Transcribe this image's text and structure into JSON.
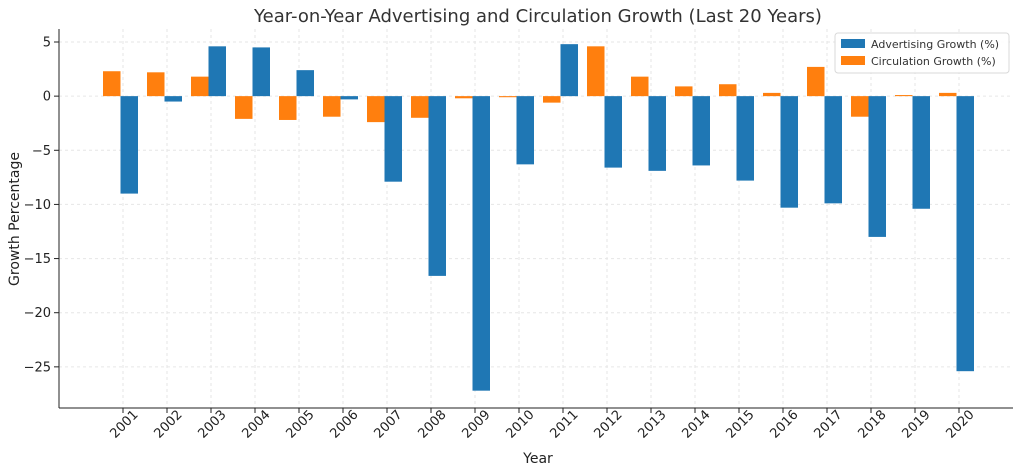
{
  "chart_data": {
    "type": "bar",
    "title": "Year-on-Year Advertising and Circulation Growth (Last 20 Years)",
    "xlabel": "Year",
    "ylabel": "Growth Percentage",
    "categories": [
      "2001",
      "2002",
      "2003",
      "2004",
      "2005",
      "2006",
      "2007",
      "2008",
      "2009",
      "2010",
      "2011",
      "2012",
      "2013",
      "2014",
      "2015",
      "2016",
      "2017",
      "2018",
      "2019",
      "2020"
    ],
    "series": [
      {
        "name": "Advertising Growth (%)",
        "color": "#1f77b4",
        "values": [
          -9.0,
          -0.5,
          4.6,
          4.5,
          2.4,
          -0.3,
          -7.9,
          -16.6,
          -27.2,
          -6.3,
          4.8,
          -6.6,
          -6.9,
          -6.4,
          -7.8,
          -10.3,
          -9.9,
          -13.0,
          -10.4,
          -25.4
        ]
      },
      {
        "name": "Circulation Growth (%)",
        "color": "#ff7f0e",
        "values": [
          2.3,
          2.2,
          1.8,
          -2.1,
          -2.2,
          -1.9,
          -2.4,
          -2.0,
          -0.2,
          -0.1,
          -0.6,
          4.6,
          1.8,
          0.9,
          1.1,
          0.3,
          2.7,
          -1.9,
          0.1,
          0.3
        ]
      }
    ],
    "ylim": [
      -28.8,
      6.2
    ],
    "yticks": [
      5,
      0,
      -5,
      -10,
      -15,
      -20,
      -25
    ],
    "ytick_labels": [
      "5",
      "0",
      "−5",
      "−10",
      "−15",
      "−20",
      "−25"
    ],
    "grid": true,
    "legend_position": "top-right"
  }
}
